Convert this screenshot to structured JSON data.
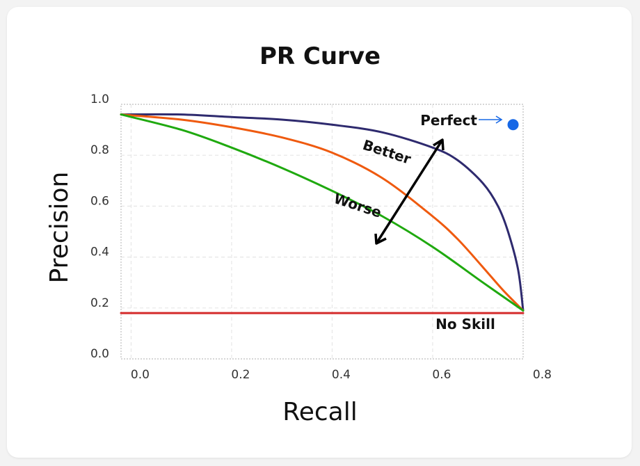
{
  "chart_data": {
    "type": "line",
    "title": "PR Curve",
    "xlabel": "Recall",
    "ylabel": "Precision",
    "xlim": [
      -0.02,
      0.78
    ],
    "ylim": [
      0.0,
      1.0
    ],
    "x_ticks": [
      "0.0",
      "0.2",
      "0.4",
      "0.6",
      "0.8"
    ],
    "y_ticks": [
      "0.0",
      "0.2",
      "0.4",
      "0.6",
      "0.8",
      "1.0"
    ],
    "grid": true,
    "series": [
      {
        "color": "#2e2a6e",
        "x": [
          -0.02,
          0.1,
          0.2,
          0.3,
          0.4,
          0.5,
          0.6,
          0.65,
          0.7,
          0.73,
          0.75,
          0.77,
          0.78
        ],
        "y": [
          0.96,
          0.96,
          0.95,
          0.94,
          0.92,
          0.89,
          0.83,
          0.78,
          0.69,
          0.6,
          0.5,
          0.35,
          0.19
        ]
      },
      {
        "color": "#ef5a0f",
        "x": [
          -0.02,
          0.1,
          0.2,
          0.3,
          0.4,
          0.5,
          0.6,
          0.65,
          0.7,
          0.74,
          0.78
        ],
        "y": [
          0.96,
          0.94,
          0.91,
          0.87,
          0.81,
          0.71,
          0.56,
          0.47,
          0.36,
          0.27,
          0.19
        ]
      },
      {
        "color": "#1fa90f",
        "x": [
          -0.02,
          0.1,
          0.2,
          0.3,
          0.4,
          0.5,
          0.6,
          0.7,
          0.78
        ],
        "y": [
          0.96,
          0.9,
          0.83,
          0.75,
          0.66,
          0.56,
          0.44,
          0.3,
          0.19
        ]
      },
      {
        "name": "No Skill",
        "color": "#d42a2a",
        "x": [
          -0.02,
          0.78
        ],
        "y": [
          0.18,
          0.18
        ]
      }
    ],
    "annotations": {
      "perfect": {
        "label": "Perfect",
        "x": 0.76,
        "y": 0.92,
        "color": "#1768e6"
      },
      "better": "Better",
      "worse": "Worse",
      "no_skill": {
        "label": "No Skill",
        "color": "#d42a2a"
      }
    }
  }
}
